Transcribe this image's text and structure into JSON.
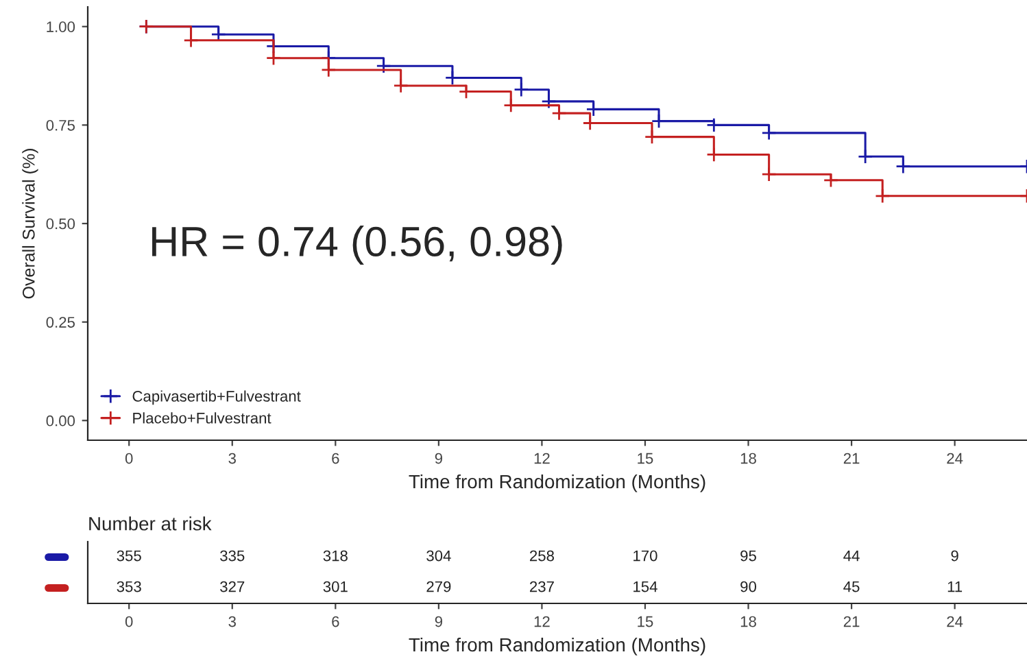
{
  "chart_data": [
    {
      "type": "step",
      "xlabel": "Time from Randomization (Months)",
      "ylabel": "Overall Survival (%)",
      "xlim": [
        -1.2,
        26.1
      ],
      "xticks": [
        0,
        3,
        6,
        9,
        12,
        15,
        18,
        21,
        24
      ],
      "ylim": [
        -0.05,
        1.05
      ],
      "yticks": [
        {
          "value": 0,
          "label": "0.00"
        },
        {
          "value": 0.25,
          "label": "0.25"
        },
        {
          "value": 0.5,
          "label": "0.50"
        },
        {
          "value": 0.75,
          "label": "0.75"
        },
        {
          "value": 1,
          "label": "1.00"
        }
      ],
      "grid": false,
      "legend": "bottom left",
      "marker": "cross",
      "line_style": "solid",
      "annotations": [
        "HR = 0.74 (0.56, 0.98)"
      ],
      "series": [
        {
          "name": "Capivasertib+Fulvestrant",
          "color": "#1a1aa6",
          "x": [
            0.5,
            2.6,
            4.2,
            5.8,
            7.4,
            9.4,
            11.4,
            12.2,
            13.5,
            15.4,
            17.0,
            18.6,
            21.4,
            22.5,
            26.1
          ],
          "values": [
            1.0,
            0.98,
            0.95,
            0.92,
            0.9,
            0.87,
            0.84,
            0.81,
            0.79,
            0.76,
            0.75,
            0.73,
            0.67,
            0.645,
            0.645
          ]
        },
        {
          "name": "Placebo+Fulvestrant",
          "color": "#c42020",
          "x": [
            0.5,
            1.8,
            4.2,
            5.8,
            7.9,
            9.8,
            11.1,
            12.5,
            13.4,
            15.2,
            17.0,
            18.6,
            20.4,
            21.9,
            26.1
          ],
          "values": [
            1.0,
            0.965,
            0.92,
            0.89,
            0.85,
            0.835,
            0.8,
            0.78,
            0.755,
            0.72,
            0.675,
            0.625,
            0.61,
            0.57,
            0.57
          ]
        }
      ]
    },
    {
      "type": "heatmap",
      "title": "Number at risk",
      "xlabel": "Time from Randomization (Months)",
      "categories": [
        "0",
        "3",
        "6",
        "9",
        "12",
        "15",
        "18",
        "21",
        "24"
      ],
      "y_categories": [
        null,
        null
      ],
      "cells": [
        [
          355,
          335,
          318,
          304,
          258,
          170,
          95,
          44,
          9
        ],
        [
          353,
          327,
          301,
          279,
          237,
          154,
          90,
          45,
          11
        ]
      ],
      "data_labels": true
    }
  ]
}
